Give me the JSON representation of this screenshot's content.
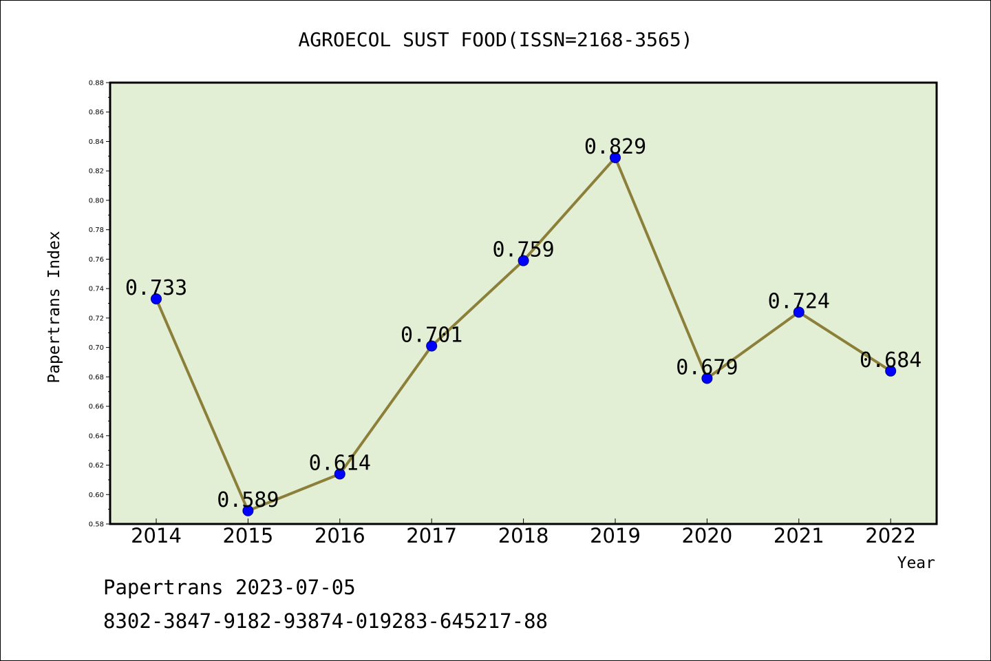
{
  "chart_data": {
    "type": "line",
    "title": "AGROECOL SUST FOOD(ISSN=2168-3565)",
    "xlabel": "Year",
    "ylabel": "Papertrans Index",
    "categories": [
      "2014",
      "2015",
      "2016",
      "2017",
      "2018",
      "2019",
      "2020",
      "2021",
      "2022"
    ],
    "series": [
      {
        "values": [
          0.733,
          0.589,
          0.614,
          0.701,
          0.759,
          0.829,
          0.679,
          0.724,
          0.684
        ],
        "labels": [
          "0.733",
          "0.589",
          "0.614",
          "0.701",
          "0.759",
          "0.829",
          "0.679",
          "0.724",
          "0.684"
        ]
      }
    ],
    "ylim": [
      0.58,
      0.88
    ],
    "yticks": [
      "0.58",
      "0.60",
      "0.62",
      "0.64",
      "0.66",
      "0.68",
      "0.70",
      "0.72",
      "0.74",
      "0.76",
      "0.78",
      "0.80",
      "0.82",
      "0.84",
      "0.86",
      "0.88"
    ],
    "grid": false,
    "legend": "none",
    "colors": {
      "plot_background": "#e2efd4",
      "line": "#8b7f3a",
      "marker": "#0000ff",
      "axis": "#000000"
    }
  },
  "footer": {
    "line1": "Papertrans 2023-07-05",
    "line2": "8302-3847-9182-93874-019283-645217-88"
  }
}
